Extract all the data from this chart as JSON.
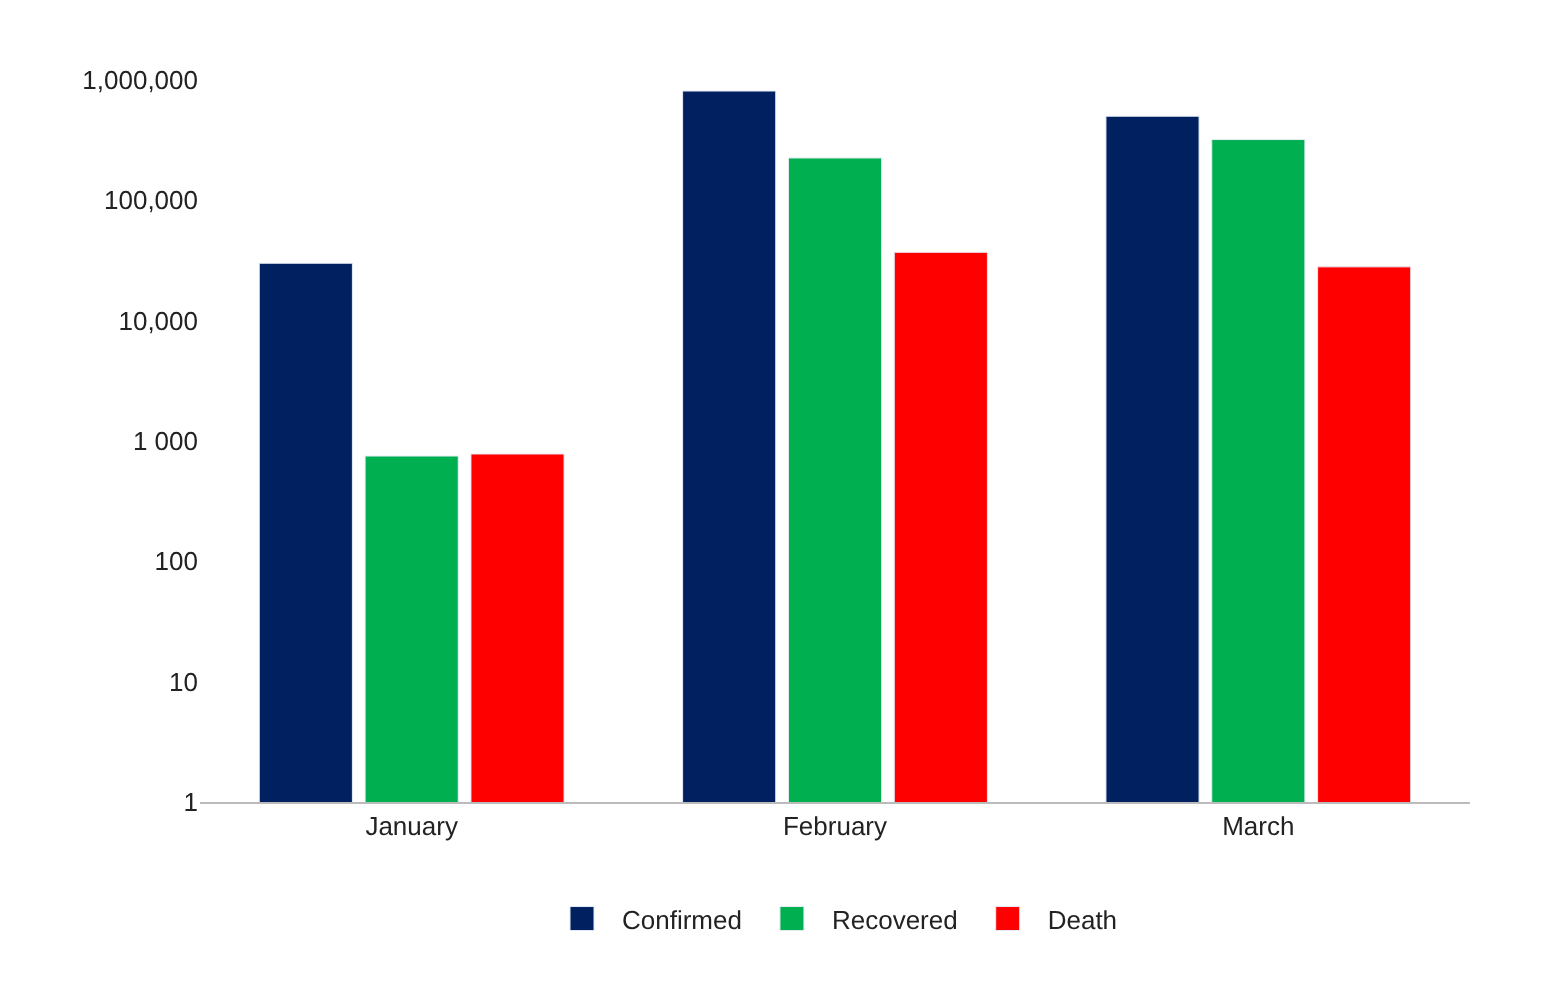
{
  "chart_data": {
    "type": "bar",
    "log": true,
    "categories": [
      "January",
      "February",
      "March"
    ],
    "series": [
      {
        "name": "Confirmed",
        "color": "#002060",
        "values": [
          30000,
          810000,
          500000
        ]
      },
      {
        "name": "Recovered",
        "color": "#00b050",
        "values": [
          750,
          225000,
          320000
        ]
      },
      {
        "name": "Death",
        "color": "#ff0000",
        "values": [
          780,
          37000,
          28000
        ]
      }
    ],
    "ylim": [
      1,
      1000000
    ],
    "yticks": [
      1,
      10,
      100,
      {
        "value": 1000,
        "label": "1 000"
      },
      {
        "value": 10000,
        "label": "10,000"
      },
      {
        "value": 100000,
        "label": "100,000"
      },
      {
        "value": 1000000,
        "label": "1,000,000"
      }
    ],
    "legend": "bottom"
  }
}
